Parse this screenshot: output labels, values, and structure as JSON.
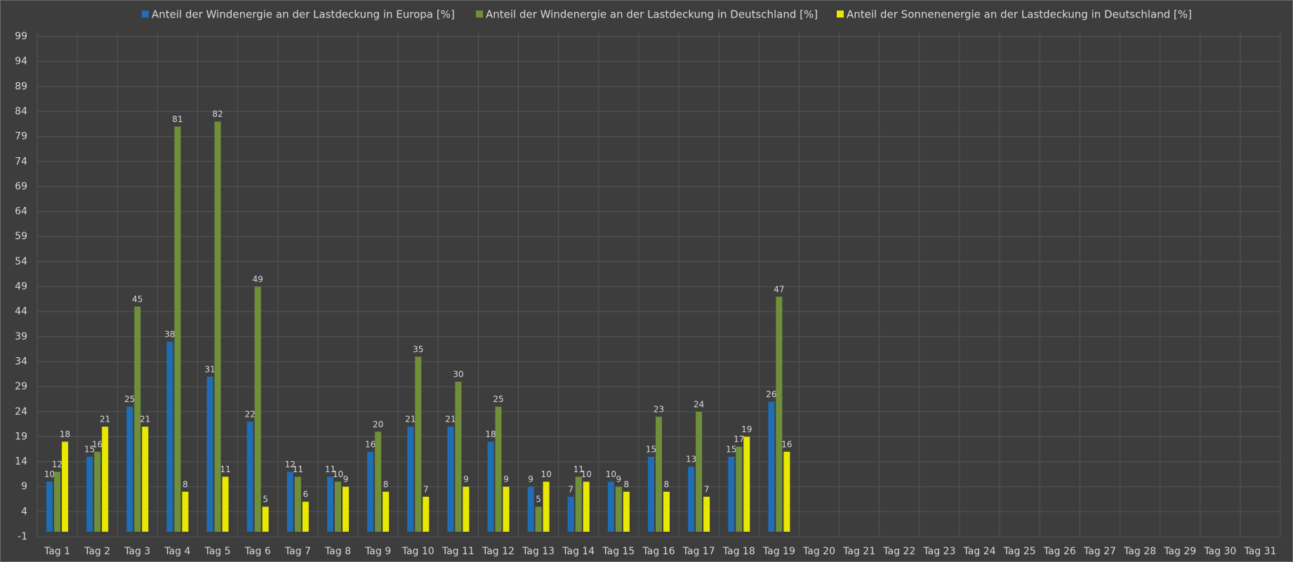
{
  "chart_data": {
    "type": "bar",
    "categories": [
      "Tag 1",
      "Tag 2",
      "Tag 3",
      "Tag 4",
      "Tag 5",
      "Tag 6",
      "Tag 7",
      "Tag 8",
      "Tag 9",
      "Tag 10",
      "Tag 11",
      "Tag 12",
      "Tag 13",
      "Tag 14",
      "Tag 15",
      "Tag 16",
      "Tag 17",
      "Tag 18",
      "Tag 19",
      "Tag 20",
      "Tag 21",
      "Tag 22",
      "Tag 23",
      "Tag 24",
      "Tag 25",
      "Tag 26",
      "Tag 27",
      "Tag 28",
      "Tag 29",
      "Tag 30",
      "Tag 31"
    ],
    "series": [
      {
        "name": "Anteil der Windenergie an der Lastdeckung in Europa [%]",
        "color": "#1f6db4",
        "values": [
          10,
          15,
          25,
          38,
          31,
          22,
          12,
          11,
          16,
          21,
          21,
          18,
          9,
          7,
          10,
          15,
          13,
          15,
          26,
          null,
          null,
          null,
          null,
          null,
          null,
          null,
          null,
          null,
          null,
          null,
          null
        ]
      },
      {
        "name": "Anteil der Windenergie an der Lastdeckung in Deutschland [%]",
        "color": "#6f8f3a",
        "values": [
          12,
          16,
          45,
          81,
          82,
          49,
          11,
          10,
          20,
          35,
          30,
          25,
          5,
          11,
          9,
          23,
          24,
          17,
          47,
          null,
          null,
          null,
          null,
          null,
          null,
          null,
          null,
          null,
          null,
          null,
          null
        ]
      },
      {
        "name": "Anteil der Sonnenenergie an der Lastdeckung in Deutschland [%]",
        "color": "#e8e800",
        "values": [
          18,
          21,
          21,
          8,
          11,
          5,
          6,
          9,
          8,
          7,
          9,
          9,
          10,
          10,
          8,
          8,
          7,
          19,
          16,
          null,
          null,
          null,
          null,
          null,
          null,
          null,
          null,
          null,
          null,
          null,
          null
        ]
      }
    ],
    "ylim": [
      -1,
      99
    ],
    "yticks": [
      -1,
      4,
      9,
      14,
      19,
      24,
      29,
      34,
      39,
      44,
      49,
      54,
      59,
      64,
      69,
      74,
      79,
      84,
      89,
      94,
      99
    ],
    "grid": true,
    "legend": "top"
  }
}
